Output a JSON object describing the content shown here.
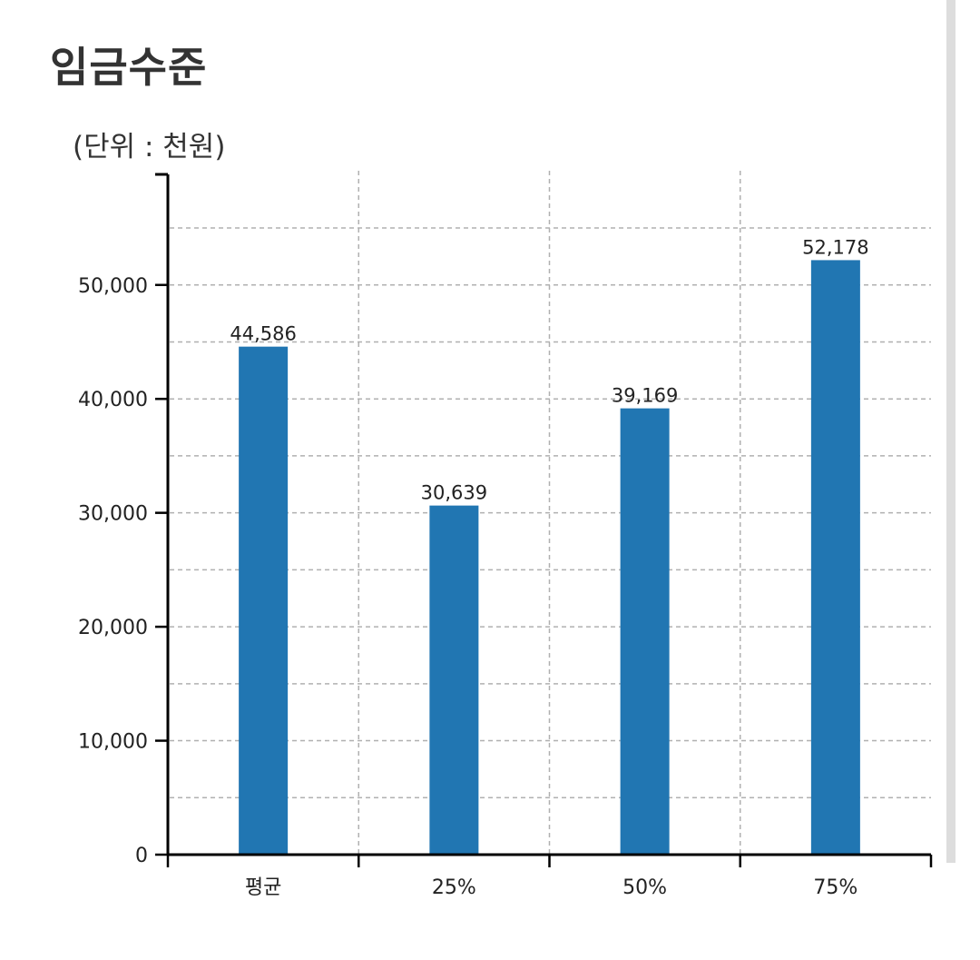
{
  "page": {
    "title": "임금수준",
    "unit": "(단위 : 천원)"
  },
  "colors": {
    "bar": "#2176b2",
    "axis": "#000000",
    "grid": "#b0b0b0"
  },
  "chart_data": {
    "type": "bar",
    "categories": [
      "평균",
      "25%",
      "50%",
      "75%"
    ],
    "values": [
      44586,
      30639,
      39169,
      52178
    ],
    "value_labels": [
      "44,586",
      "30,639",
      "39,169",
      "52,178"
    ],
    "yticks": [
      0,
      10000,
      20000,
      30000,
      40000,
      50000
    ],
    "ytick_labels": [
      "0",
      "10,000",
      "20,000",
      "30,000",
      "40,000",
      "50,000"
    ],
    "ylim": [
      0,
      60000
    ],
    "grid": true,
    "legend": "none"
  }
}
